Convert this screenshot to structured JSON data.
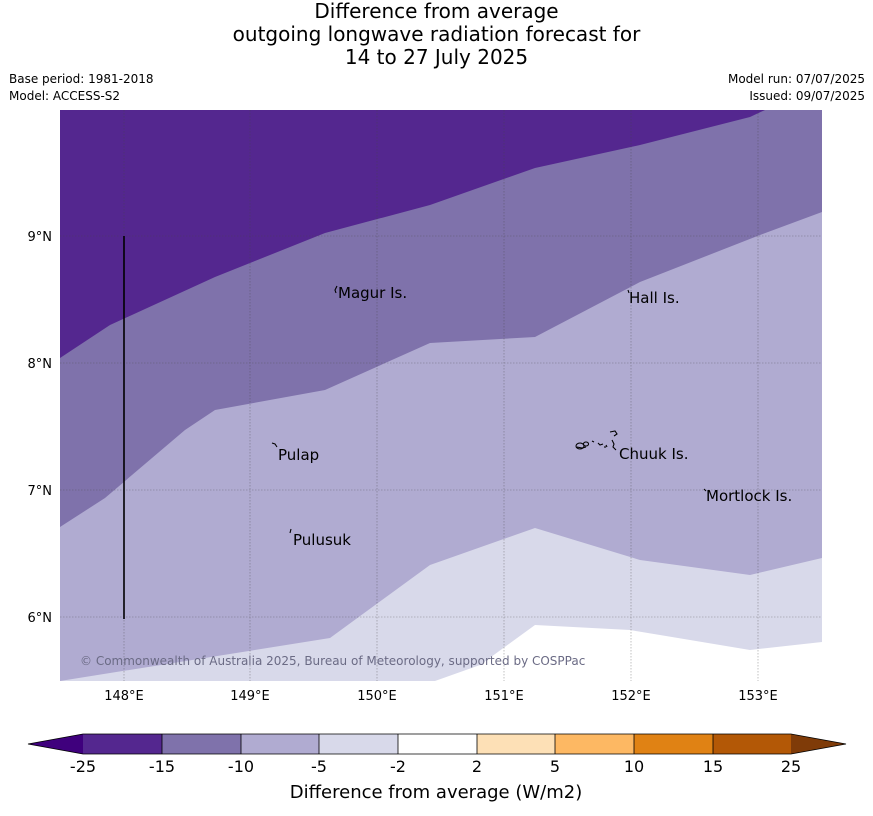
{
  "title": {
    "line1": "Difference from average",
    "line2": "outgoing longwave radiation forecast for",
    "line3": "14 to 27 July 2025"
  },
  "meta": {
    "base_period": "Base period: 1981-2018",
    "model": "Model: ACCESS-S2",
    "model_run": "Model run: 07/07/2025",
    "issued": "Issued: 09/07/2025"
  },
  "map": {
    "lon_ticks": [
      "148°E",
      "149°E",
      "150°E",
      "151°E",
      "152°E",
      "153°E"
    ],
    "lat_ticks": [
      "9°N",
      "8°N",
      "7°N",
      "6°N"
    ],
    "places": [
      "Magur Is.",
      "Hall Is.",
      "Pulap",
      "Chuuk Is.",
      "Mortlock Is.",
      "Pulusuk"
    ],
    "copyright": "© Commonwealth of Australia 2025, Bureau of Meteorology, supported by COSPPac",
    "band_colors": [
      "#54278f",
      "#7f72ab",
      "#b0abd1",
      "#d8d9ea",
      "#ffffff"
    ]
  },
  "colorbar": {
    "ticks": [
      "-25",
      "-15",
      "-10",
      "-5",
      "-2",
      "2",
      "5",
      "10",
      "15",
      "25"
    ],
    "colors": [
      "#3f007d",
      "#54278f",
      "#7f72ab",
      "#b0abd1",
      "#d8d9ea",
      "#ffffff",
      "#fde0b6",
      "#fdb863",
      "#e08214",
      "#b35806",
      "#7f3b08"
    ],
    "label": "Difference from average (W/m2)"
  }
}
